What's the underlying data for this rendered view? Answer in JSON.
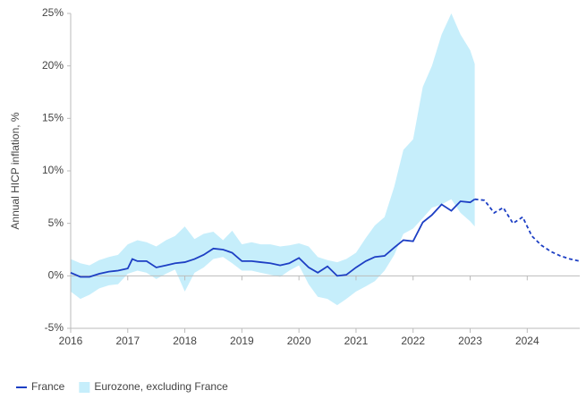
{
  "chart_data": {
    "type": "line",
    "ylabel": "Annual HICP inflation, %",
    "xlim": [
      2016,
      2024.92
    ],
    "xticks": [
      2016,
      2017,
      2018,
      2019,
      2020,
      2021,
      2022,
      2023,
      2024
    ],
    "ylim": [
      -5,
      25
    ],
    "yticks": [
      {
        "value": -5,
        "label": "-5%"
      },
      {
        "value": 0,
        "label": "0%"
      },
      {
        "value": 5,
        "label": "5%"
      },
      {
        "value": 10,
        "label": "10%"
      },
      {
        "value": 15,
        "label": "15%"
      },
      {
        "value": 20,
        "label": "20%"
      },
      {
        "value": 25,
        "label": "25%"
      }
    ],
    "legend": "bottom-left",
    "series": [
      {
        "name": "France",
        "color": "#1d3fc4",
        "forecast_from": 2023.08,
        "x": [
          2016.0,
          2016.17,
          2016.33,
          2016.5,
          2016.67,
          2016.83,
          2017.0,
          2017.08,
          2017.17,
          2017.33,
          2017.5,
          2017.67,
          2017.83,
          2018.0,
          2018.17,
          2018.33,
          2018.5,
          2018.67,
          2018.83,
          2019.0,
          2019.17,
          2019.33,
          2019.5,
          2019.67,
          2019.83,
          2020.0,
          2020.17,
          2020.33,
          2020.5,
          2020.67,
          2020.83,
          2021.0,
          2021.17,
          2021.33,
          2021.5,
          2021.67,
          2021.83,
          2022.0,
          2022.17,
          2022.33,
          2022.5,
          2022.67,
          2022.83,
          2023.0,
          2023.08,
          2023.25,
          2023.42,
          2023.58,
          2023.75,
          2023.92,
          2024.08,
          2024.25,
          2024.42,
          2024.58,
          2024.75,
          2024.92
        ],
        "values": [
          0.3,
          -0.1,
          -0.1,
          0.2,
          0.4,
          0.5,
          0.7,
          1.6,
          1.4,
          1.4,
          0.8,
          1.0,
          1.2,
          1.3,
          1.6,
          2.0,
          2.6,
          2.5,
          2.2,
          1.4,
          1.4,
          1.3,
          1.2,
          1.0,
          1.2,
          1.7,
          0.8,
          0.3,
          0.9,
          0.0,
          0.1,
          0.8,
          1.4,
          1.8,
          1.9,
          2.7,
          3.4,
          3.3,
          5.1,
          5.8,
          6.8,
          6.2,
          7.1,
          7.0,
          7.3,
          7.2,
          6.0,
          6.5,
          5.0,
          5.6,
          3.8,
          2.9,
          2.3,
          1.9,
          1.6,
          1.4
        ]
      },
      {
        "name": "Eurozone, excluding France",
        "color": "#c6eefb",
        "type": "range",
        "x": [
          2016.0,
          2016.17,
          2016.33,
          2016.5,
          2016.67,
          2016.83,
          2017.0,
          2017.17,
          2017.33,
          2017.5,
          2017.67,
          2017.83,
          2018.0,
          2018.17,
          2018.33,
          2018.5,
          2018.67,
          2018.83,
          2019.0,
          2019.17,
          2019.33,
          2019.5,
          2019.67,
          2019.83,
          2020.0,
          2020.17,
          2020.33,
          2020.5,
          2020.67,
          2020.83,
          2021.0,
          2021.17,
          2021.33,
          2021.5,
          2021.67,
          2021.83,
          2022.0,
          2022.17,
          2022.33,
          2022.5,
          2022.67,
          2022.83,
          2023.0,
          2023.08
        ],
        "low": [
          -1.5,
          -2.2,
          -1.8,
          -1.2,
          -0.9,
          -0.8,
          0.2,
          0.5,
          0.3,
          -0.3,
          0.2,
          0.6,
          -1.5,
          0.3,
          0.8,
          1.6,
          1.8,
          1.2,
          0.5,
          0.5,
          0.3,
          0.1,
          -0.1,
          0.5,
          1.0,
          -0.8,
          -2.0,
          -2.2,
          -2.8,
          -2.2,
          -1.5,
          -1.0,
          -0.5,
          0.5,
          2.0,
          4.0,
          4.5,
          5.5,
          6.5,
          6.8,
          7.3,
          6.0,
          5.2,
          4.7
        ],
        "high": [
          1.6,
          1.2,
          1.0,
          1.5,
          1.8,
          2.0,
          3.0,
          3.4,
          3.2,
          2.8,
          3.4,
          3.8,
          4.7,
          3.5,
          4.0,
          4.2,
          3.4,
          4.3,
          3.0,
          3.2,
          3.0,
          3.0,
          2.8,
          2.9,
          3.1,
          2.8,
          1.8,
          1.5,
          1.3,
          1.6,
          2.2,
          3.6,
          4.8,
          5.6,
          8.5,
          12.0,
          13.0,
          18.0,
          20.0,
          23.0,
          25.0,
          23.0,
          21.5,
          20.2
        ]
      }
    ]
  }
}
